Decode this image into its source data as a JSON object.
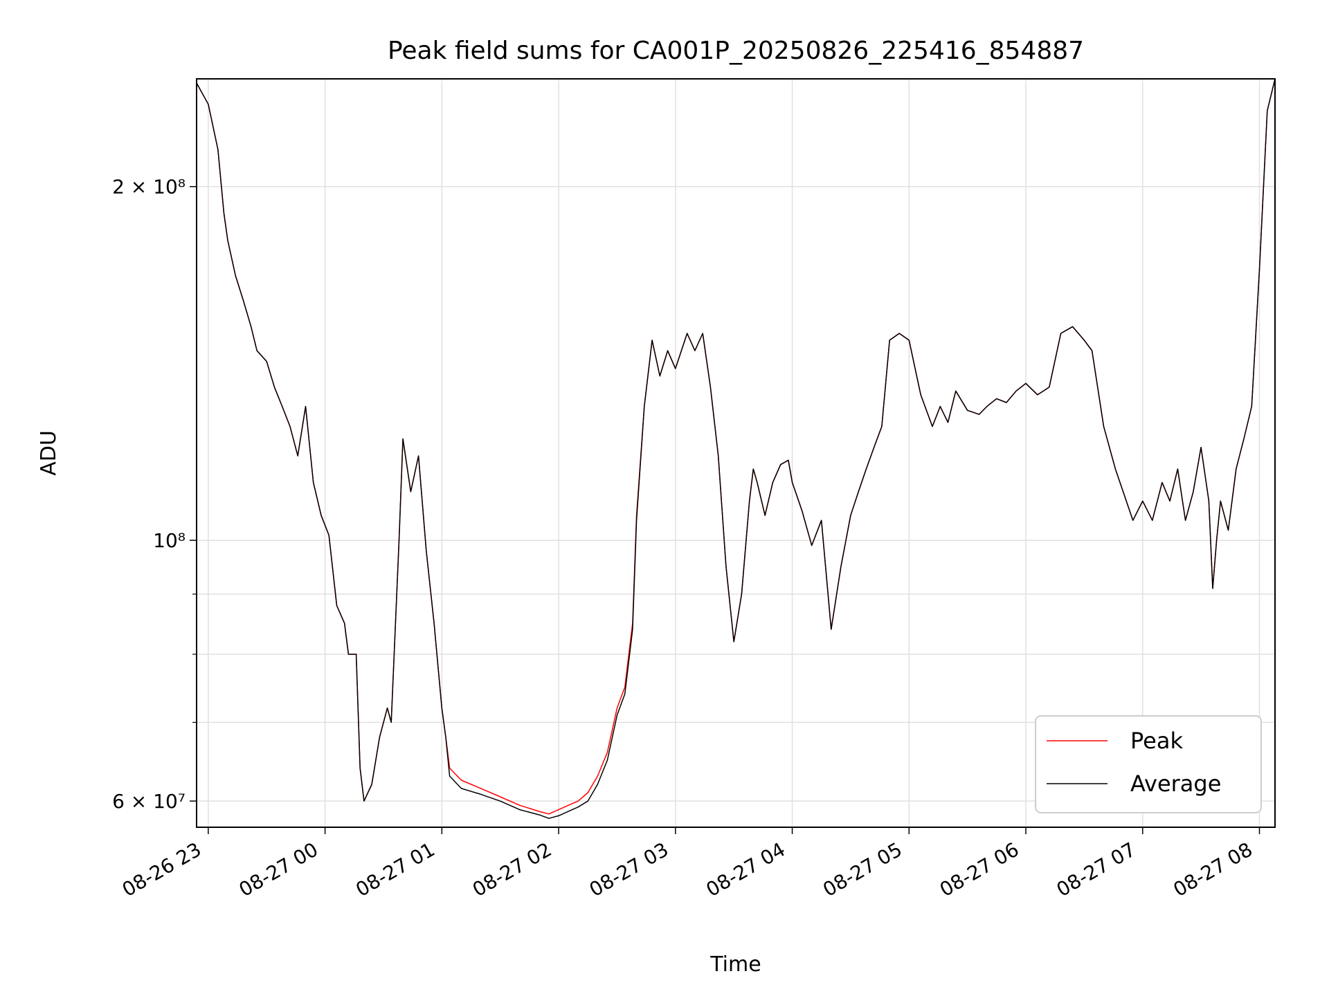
{
  "chart_data": {
    "type": "line",
    "title": "Peak field sums for CA001P_20250826_225416_854887",
    "xlabel": "Time",
    "ylabel": "ADU",
    "yscale": "log",
    "grid": true,
    "legend_position": "lower right",
    "xlim": [
      "2025-08-26T22:54",
      "2025-08-27T08:08"
    ],
    "ylim": [
      57000000,
      247000000
    ],
    "x_ticks": [
      "08-26 23",
      "08-27 00",
      "08-27 01",
      "08-27 02",
      "08-27 03",
      "08-27 04",
      "08-27 05",
      "08-27 06",
      "08-27 07",
      "08-27 08"
    ],
    "x_tick_times": [
      "2025-08-26T23:00",
      "2025-08-27T00:00",
      "2025-08-27T01:00",
      "2025-08-27T02:00",
      "2025-08-27T03:00",
      "2025-08-27T04:00",
      "2025-08-27T05:00",
      "2025-08-27T06:00",
      "2025-08-27T07:00",
      "2025-08-27T08:00"
    ],
    "y_tick_labels": [
      "6 × 10⁷",
      "10⁸",
      "2 × 10⁸"
    ],
    "y_tick_values": [
      60000000,
      100000000,
      200000000
    ],
    "y_minor_ticks": [
      70000000,
      80000000,
      90000000
    ],
    "colors": {
      "Peak": "#ff0000",
      "Average": "#000000",
      "grid": "#e0e0e0"
    },
    "x": [
      "2025-08-26T22:54",
      "2025-08-26T23:00",
      "2025-08-26T23:05",
      "2025-08-26T23:08",
      "2025-08-26T23:10",
      "2025-08-26T23:14",
      "2025-08-26T23:18",
      "2025-08-26T23:22",
      "2025-08-26T23:25",
      "2025-08-26T23:30",
      "2025-08-26T23:34",
      "2025-08-26T23:38",
      "2025-08-26T23:42",
      "2025-08-26T23:46",
      "2025-08-26T23:50",
      "2025-08-26T23:54",
      "2025-08-26T23:58",
      "2025-08-27T00:02",
      "2025-08-27T00:06",
      "2025-08-27T00:10",
      "2025-08-27T00:12",
      "2025-08-27T00:16",
      "2025-08-27T00:18",
      "2025-08-27T00:20",
      "2025-08-27T00:24",
      "2025-08-27T00:28",
      "2025-08-27T00:32",
      "2025-08-27T00:34",
      "2025-08-27T00:38",
      "2025-08-27T00:40",
      "2025-08-27T00:44",
      "2025-08-27T00:48",
      "2025-08-27T00:52",
      "2025-08-27T00:56",
      "2025-08-27T01:00",
      "2025-08-27T01:02",
      "2025-08-27T01:04",
      "2025-08-27T01:10",
      "2025-08-27T01:20",
      "2025-08-27T01:30",
      "2025-08-27T01:40",
      "2025-08-27T01:50",
      "2025-08-27T01:55",
      "2025-08-27T02:00",
      "2025-08-27T02:05",
      "2025-08-27T02:10",
      "2025-08-27T02:15",
      "2025-08-27T02:20",
      "2025-08-27T02:25",
      "2025-08-27T02:30",
      "2025-08-27T02:34",
      "2025-08-27T02:38",
      "2025-08-27T02:40",
      "2025-08-27T02:44",
      "2025-08-27T02:48",
      "2025-08-27T02:52",
      "2025-08-27T02:56",
      "2025-08-27T03:00",
      "2025-08-27T03:06",
      "2025-08-27T03:10",
      "2025-08-27T03:14",
      "2025-08-27T03:18",
      "2025-08-27T03:22",
      "2025-08-27T03:26",
      "2025-08-27T03:30",
      "2025-08-27T03:34",
      "2025-08-27T03:38",
      "2025-08-27T03:40",
      "2025-08-27T03:42",
      "2025-08-27T03:46",
      "2025-08-27T03:50",
      "2025-08-27T03:54",
      "2025-08-27T03:58",
      "2025-08-27T04:00",
      "2025-08-27T04:05",
      "2025-08-27T04:10",
      "2025-08-27T04:15",
      "2025-08-27T04:20",
      "2025-08-27T04:25",
      "2025-08-27T04:30",
      "2025-08-27T04:34",
      "2025-08-27T04:38",
      "2025-08-27T04:42",
      "2025-08-27T04:46",
      "2025-08-27T04:50",
      "2025-08-27T04:55",
      "2025-08-27T05:00",
      "2025-08-27T05:06",
      "2025-08-27T05:12",
      "2025-08-27T05:16",
      "2025-08-27T05:20",
      "2025-08-27T05:24",
      "2025-08-27T05:30",
      "2025-08-27T05:36",
      "2025-08-27T05:40",
      "2025-08-27T05:45",
      "2025-08-27T05:50",
      "2025-08-27T05:55",
      "2025-08-27T06:00",
      "2025-08-27T06:06",
      "2025-08-27T06:12",
      "2025-08-27T06:18",
      "2025-08-27T06:24",
      "2025-08-27T06:30",
      "2025-08-27T06:34",
      "2025-08-27T06:40",
      "2025-08-27T06:46",
      "2025-08-27T06:50",
      "2025-08-27T06:55",
      "2025-08-27T07:00",
      "2025-08-27T07:05",
      "2025-08-27T07:10",
      "2025-08-27T07:14",
      "2025-08-27T07:18",
      "2025-08-27T07:22",
      "2025-08-27T07:26",
      "2025-08-27T07:30",
      "2025-08-27T07:34",
      "2025-08-27T07:36",
      "2025-08-27T07:38",
      "2025-08-27T07:40",
      "2025-08-27T07:44",
      "2025-08-27T07:48",
      "2025-08-27T07:52",
      "2025-08-27T07:56",
      "2025-08-27T08:00",
      "2025-08-27T08:04",
      "2025-08-27T08:08"
    ],
    "series": [
      {
        "name": "Peak",
        "values": [
          245000000,
          235000000,
          215000000,
          190000000,
          180000000,
          168000000,
          160000000,
          152000000,
          145000000,
          142000000,
          135000000,
          130000000,
          125000000,
          118000000,
          130000000,
          112000000,
          105000000,
          101000000,
          88000000,
          85000000,
          80000000,
          80000000,
          64000000,
          60000000,
          62000000,
          68000000,
          72000000,
          70000000,
          100000000,
          122000000,
          110000000,
          118000000,
          98000000,
          85000000,
          72000000,
          68000000,
          64000000,
          62500000,
          61500000,
          60500000,
          59500000,
          58800000,
          58500000,
          59000000,
          59500000,
          60000000,
          61000000,
          63000000,
          66000000,
          72000000,
          75000000,
          85000000,
          105000000,
          130000000,
          148000000,
          138000000,
          145000000,
          140000000,
          150000000,
          145000000,
          150000000,
          135000000,
          118000000,
          95000000,
          82000000,
          90000000,
          108000000,
          115000000,
          112000000,
          105000000,
          112000000,
          116000000,
          117000000,
          112000000,
          106000000,
          99000000,
          104000000,
          84000000,
          95000000,
          105000000,
          110000000,
          115000000,
          120000000,
          125000000,
          148000000,
          150000000,
          148000000,
          133000000,
          125000000,
          130000000,
          126000000,
          134000000,
          129000000,
          128000000,
          130000000,
          132000000,
          131000000,
          134000000,
          136000000,
          133000000,
          135000000,
          150000000,
          152000000,
          148000000,
          145000000,
          125000000,
          115000000,
          110000000,
          104000000,
          108000000,
          104000000,
          112000000,
          108000000,
          115000000,
          104000000,
          110000000,
          120000000,
          108000000,
          91000000,
          100000000,
          108000000,
          102000000,
          115000000,
          122000000,
          130000000,
          170000000,
          232000000,
          247000000
        ]
      },
      {
        "name": "Average",
        "values": [
          245000000,
          235000000,
          215000000,
          190000000,
          180000000,
          168000000,
          160000000,
          152000000,
          145000000,
          142000000,
          135000000,
          130000000,
          125000000,
          118000000,
          130000000,
          112000000,
          105000000,
          101000000,
          88000000,
          85000000,
          80000000,
          80000000,
          64000000,
          60000000,
          62000000,
          68000000,
          72000000,
          70000000,
          100000000,
          122000000,
          110000000,
          118000000,
          98000000,
          85000000,
          72000000,
          68000000,
          63000000,
          61500000,
          60800000,
          60000000,
          59000000,
          58400000,
          58000000,
          58300000,
          58800000,
          59300000,
          60000000,
          62000000,
          65000000,
          71000000,
          74000000,
          84000000,
          104000000,
          130000000,
          148000000,
          138000000,
          145000000,
          140000000,
          150000000,
          145000000,
          150000000,
          135000000,
          118000000,
          95000000,
          82000000,
          90000000,
          108000000,
          115000000,
          112000000,
          105000000,
          112000000,
          116000000,
          117000000,
          112000000,
          106000000,
          99000000,
          104000000,
          84000000,
          95000000,
          105000000,
          110000000,
          115000000,
          120000000,
          125000000,
          148000000,
          150000000,
          148000000,
          133000000,
          125000000,
          130000000,
          126000000,
          134000000,
          129000000,
          128000000,
          130000000,
          132000000,
          131000000,
          134000000,
          136000000,
          133000000,
          135000000,
          150000000,
          152000000,
          148000000,
          145000000,
          125000000,
          115000000,
          110000000,
          104000000,
          108000000,
          104000000,
          112000000,
          108000000,
          115000000,
          104000000,
          110000000,
          120000000,
          108000000,
          91000000,
          100000000,
          108000000,
          102000000,
          115000000,
          122000000,
          130000000,
          170000000,
          232000000,
          247000000
        ]
      }
    ]
  }
}
